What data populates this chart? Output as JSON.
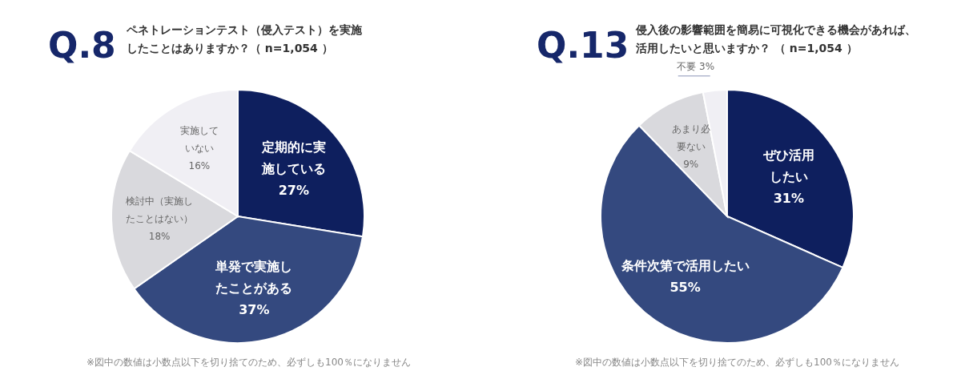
{
  "chart_data": [
    {
      "type": "pie",
      "title": "Q.8",
      "subtitle": "ペネトレーションテスト（侵入テスト）を実施したことはありますか？（ n=1,054 ）",
      "categories": [
        "定期的に実施している",
        "単発で実施したことがある",
        "検討中（実施したことはない）",
        "実施していない"
      ],
      "values": [
        27,
        37,
        18,
        16
      ],
      "value_labels": [
        "27%",
        "37%",
        "18%",
        "16%"
      ],
      "colors": [
        "#0e1f5e",
        "#34497f",
        "#d9d9dd",
        "#f0eff4"
      ],
      "annotations": [
        "※図中の数値は小数点以下を切り捨てのため、必ずしも100％になりません"
      ]
    },
    {
      "type": "pie",
      "title": "Q.13",
      "subtitle": "侵入後の影響範囲を簡易に可視化できる機会があれば、活用したいと思いますか？ （ n=1,054 ）",
      "categories": [
        "ぜひ活用したい",
        "条件次第で活用したい",
        "あまり必要ない",
        "不要"
      ],
      "values": [
        31,
        55,
        9,
        3
      ],
      "value_labels": [
        "31%",
        "55%",
        "9%",
        "3%"
      ],
      "colors": [
        "#0e1f5e",
        "#34497f",
        "#d9d9dd",
        "#f0eff4"
      ],
      "annotations": [
        "※図中の数値は小数点以下を切り捨てのため、必ずしも100％になりません"
      ]
    }
  ]
}
